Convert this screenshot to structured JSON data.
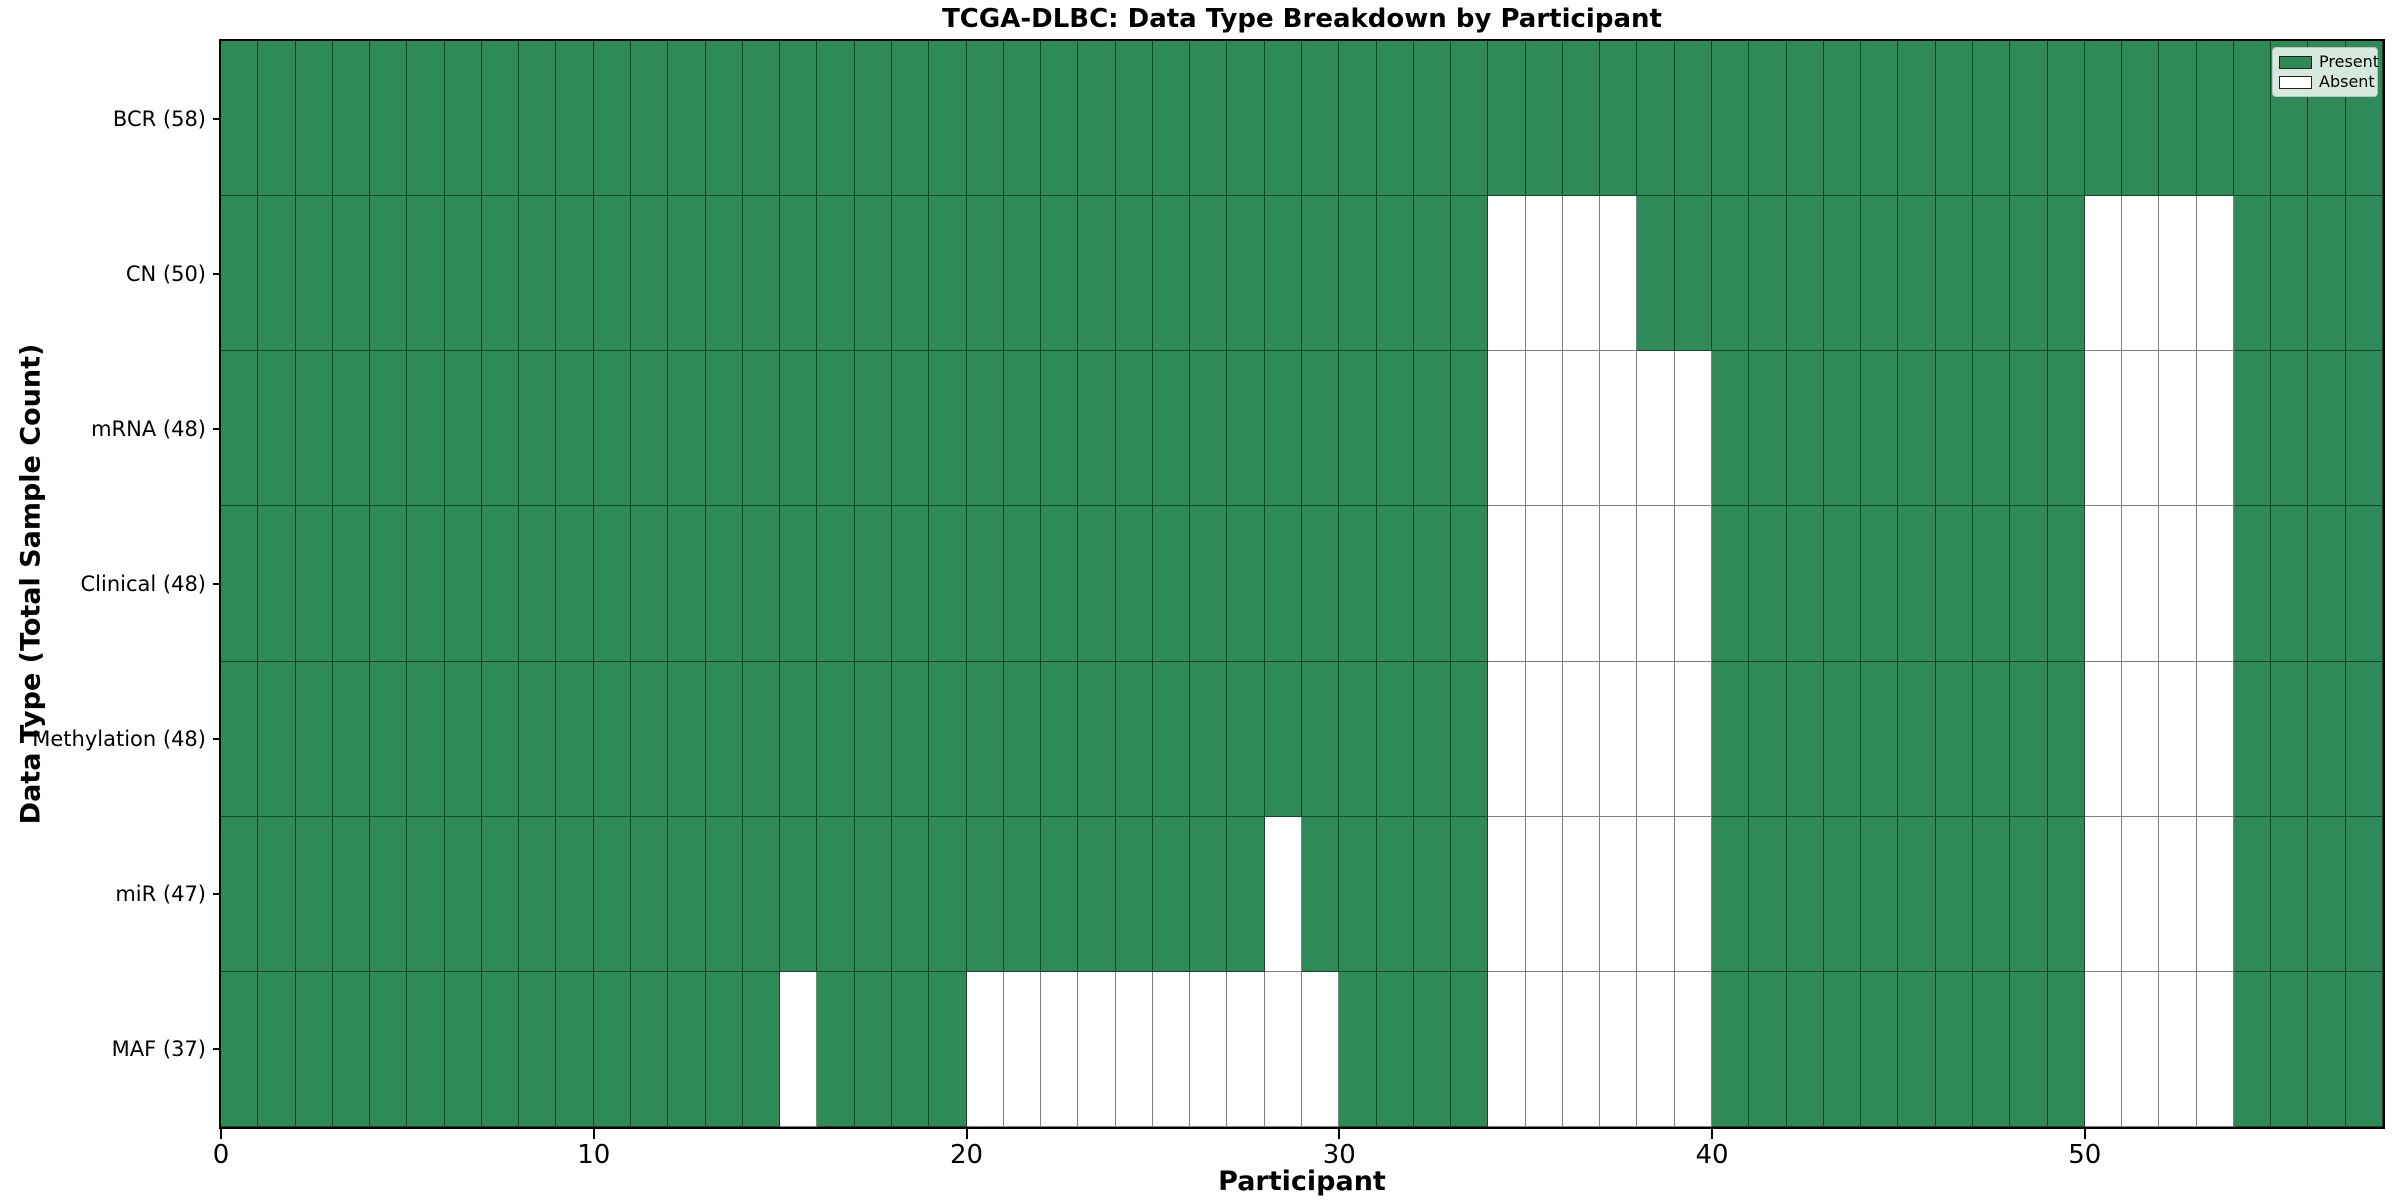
{
  "chart_data": {
    "type": "heatmap",
    "title": "TCGA-DLBC: Data Type Breakdown by Participant",
    "xlabel": "Participant",
    "ylabel": "Data Type (Total Sample Count)",
    "x_ticks": [
      0,
      10,
      20,
      30,
      40,
      50
    ],
    "x_range": [
      0,
      58
    ],
    "n_participants": 58,
    "grid_on": true,
    "legend_position": "upper right",
    "colors": {
      "present": "#2e8b57",
      "absent": "#ffffff"
    },
    "legend": [
      {
        "label": "Present",
        "color": "#2e8b57"
      },
      {
        "label": "Absent",
        "color": "#ffffff"
      }
    ],
    "rows": [
      {
        "label": "BCR (58)",
        "data_type": "BCR",
        "total_samples": 58,
        "absent_participants": []
      },
      {
        "label": "CN (50)",
        "data_type": "CN",
        "total_samples": 50,
        "absent_participants": [
          34,
          35,
          36,
          37,
          50,
          51,
          52,
          53
        ]
      },
      {
        "label": "mRNA (48)",
        "data_type": "mRNA",
        "total_samples": 48,
        "absent_participants": [
          34,
          35,
          36,
          37,
          38,
          39,
          50,
          51,
          52,
          53
        ]
      },
      {
        "label": "Clinical (48)",
        "data_type": "Clinical",
        "total_samples": 48,
        "absent_participants": [
          34,
          35,
          36,
          37,
          38,
          39,
          50,
          51,
          52,
          53
        ]
      },
      {
        "label": "Methylation (48)",
        "data_type": "Methylation",
        "total_samples": 48,
        "absent_participants": [
          34,
          35,
          36,
          37,
          38,
          39,
          50,
          51,
          52,
          53
        ]
      },
      {
        "label": "miR (47)",
        "data_type": "miR",
        "total_samples": 47,
        "absent_participants": [
          28,
          34,
          35,
          36,
          37,
          38,
          39,
          50,
          51,
          52,
          53
        ]
      },
      {
        "label": "MAF (37)",
        "data_type": "MAF",
        "total_samples": 37,
        "absent_participants": [
          15,
          20,
          21,
          22,
          23,
          24,
          25,
          26,
          27,
          28,
          29,
          34,
          35,
          36,
          37,
          38,
          39,
          50,
          51,
          52,
          53
        ]
      }
    ]
  }
}
